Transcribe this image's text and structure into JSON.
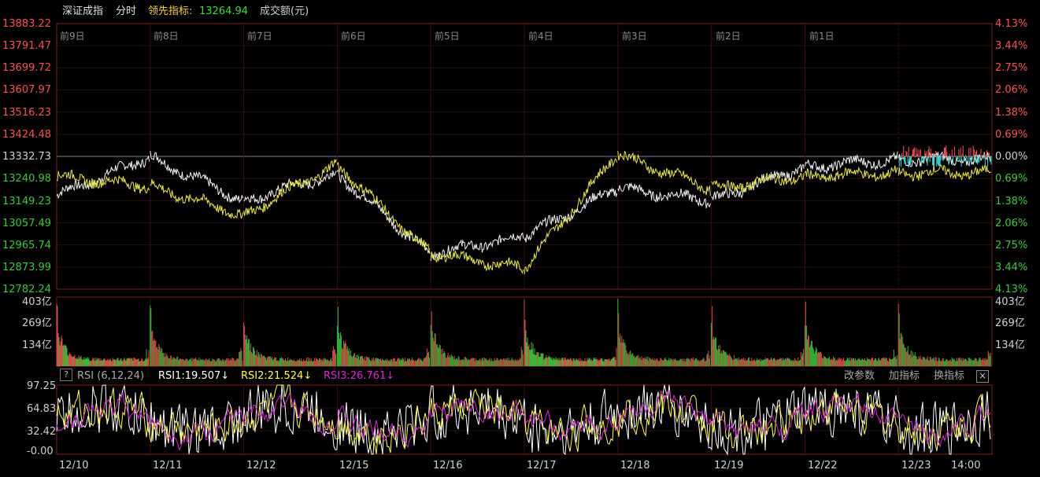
{
  "header": {
    "index_name": "深证成指",
    "mode": "分时",
    "leading_label": "领先指标:",
    "leading_value": "13264.94",
    "volume_unit_label": "成交额(元)"
  },
  "price_axis": {
    "left_labels": [
      "13883.22",
      "13791.47",
      "13699.72",
      "13607.97",
      "13516.23",
      "13424.48",
      "13332.73",
      "13240.98",
      "13149.23",
      "13057.49",
      "12965.74",
      "12873.99",
      "12782.24"
    ],
    "right_labels": [
      "4.13%",
      "3.44%",
      "2.75%",
      "2.06%",
      "1.38%",
      "0.69%",
      "0.00%",
      "0.69%",
      "1.38%",
      "2.06%",
      "2.75%",
      "3.44%",
      "4.13%"
    ],
    "up_color": "#ff4d4d",
    "down_color": "#33cc33",
    "flat_color": "#cfcfcf"
  },
  "day_labels": [
    "前9日",
    "前8日",
    "前7日",
    "前6日",
    "前5日",
    "前4日",
    "前3日",
    "前2日",
    "前1日"
  ],
  "volume_axis": {
    "labels": [
      "403亿",
      "269亿",
      "134亿"
    ]
  },
  "rsi": {
    "help": "?",
    "title": "RSI (6,12,24)",
    "rsi1": "RSI1:19.507↓",
    "rsi2": "RSI2:21.524↓",
    "rsi3": "RSI3:26.761↓",
    "colors": {
      "rsi1": "#ffffff",
      "rsi2": "#ffff33",
      "rsi3": "#e020e0"
    },
    "buttons": [
      "改参数",
      "加指标",
      "换指标"
    ],
    "close": "×",
    "axis_labels": [
      "97.25",
      "64.83",
      "32.42",
      "-0.00"
    ]
  },
  "date_labels": [
    "12/10",
    "12/11",
    "12/12",
    "12/15",
    "12/16",
    "12/17",
    "12/18",
    "12/19",
    "12/22",
    "12/23",
    "14:00"
  ],
  "chart_data": {
    "type": "line",
    "title": "",
    "x": [
      "12/10",
      "12/11",
      "12/12",
      "12/15",
      "12/16",
      "12/17",
      "12/18",
      "12/19",
      "12/22",
      "12/23"
    ],
    "series": [
      {
        "name": "",
        "values": [
          13170,
          13330,
          13150,
          13260,
          12930,
          13000,
          13200,
          13150,
          13290,
          13320
        ]
      },
      {
        "name": "领先指标",
        "values": [
          13250,
          13210,
          13090,
          13300,
          12930,
          12870,
          13340,
          13200,
          13250,
          13264.94
        ]
      }
    ],
    "ylim": [
      12782.24,
      13883.22
    ],
    "grid": true
  }
}
